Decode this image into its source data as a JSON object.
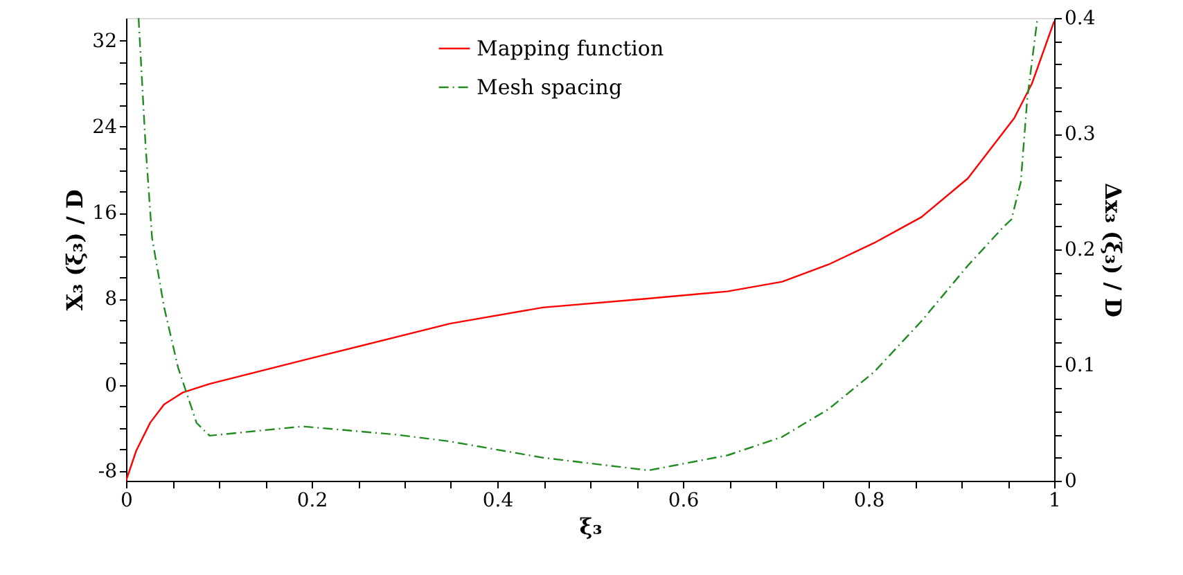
{
  "chart_data": {
    "type": "line",
    "xlabel": "ξ₃",
    "ylabel": "X₃ (ξ₃) / D",
    "y2label": "Δx₃ (ξ₃) / D",
    "xlim": [
      0,
      1
    ],
    "ylim": [
      -8.9,
      34.1
    ],
    "y2lim": [
      0,
      0.4
    ],
    "xticks": [
      0,
      {
        "value": 0.05,
        "label": null
      },
      {
        "value": 0.1,
        "label": null
      },
      {
        "value": 0.15,
        "label": null
      },
      0.2,
      {
        "value": 0.25,
        "label": null
      },
      {
        "value": 0.3,
        "label": null
      },
      {
        "value": 0.35,
        "label": null
      },
      0.4,
      {
        "value": 0.45,
        "label": null
      },
      {
        "value": 0.5,
        "label": null
      },
      {
        "value": 0.55,
        "label": null
      },
      0.6,
      {
        "value": 0.65,
        "label": null
      },
      {
        "value": 0.7,
        "label": null
      },
      {
        "value": 0.75,
        "label": null
      },
      0.8,
      {
        "value": 0.85,
        "label": null
      },
      {
        "value": 0.9,
        "label": null
      },
      {
        "value": 0.95,
        "label": null
      },
      1
    ],
    "yticks": [
      -8,
      {
        "value": -6,
        "label": null
      },
      {
        "value": -4,
        "label": null
      },
      {
        "value": -2,
        "label": null
      },
      0,
      {
        "value": 2,
        "label": null
      },
      {
        "value": 4,
        "label": null
      },
      {
        "value": 6,
        "label": null
      },
      8,
      {
        "value": 10,
        "label": null
      },
      {
        "value": 12,
        "label": null
      },
      {
        "value": 14,
        "label": null
      },
      16,
      {
        "value": 18,
        "label": null
      },
      {
        "value": 20,
        "label": null
      },
      {
        "value": 22,
        "label": null
      },
      24,
      {
        "value": 26,
        "label": null
      },
      {
        "value": 28,
        "label": null
      },
      {
        "value": 30,
        "label": null
      },
      32
    ],
    "y2ticks": [
      0,
      {
        "value": 0.02,
        "label": null
      },
      {
        "value": 0.04,
        "label": null
      },
      {
        "value": 0.06,
        "label": null
      },
      {
        "value": 0.08,
        "label": null
      },
      0.1,
      {
        "value": 0.12,
        "label": null
      },
      {
        "value": 0.14,
        "label": null
      },
      {
        "value": 0.16,
        "label": null
      },
      {
        "value": 0.18,
        "label": null
      },
      0.2,
      {
        "value": 0.22,
        "label": null
      },
      {
        "value": 0.24,
        "label": null
      },
      {
        "value": 0.26,
        "label": null
      },
      {
        "value": 0.28,
        "label": null
      },
      0.3,
      {
        "value": 0.32,
        "label": null
      },
      {
        "value": 0.34,
        "label": null
      },
      {
        "value": 0.36,
        "label": null
      },
      {
        "value": 0.38,
        "label": null
      },
      0.4
    ],
    "grid": false,
    "legend": "top",
    "marker": "none",
    "series": [
      {
        "name": "Mapping function",
        "color": "#ff0000",
        "line_style": "solid",
        "x": [
          0,
          0.011,
          0.026,
          0.041,
          0.061,
          0.09,
          0.2,
          0.349,
          0.449,
          0.558,
          0.648,
          0.707,
          0.757,
          0.806,
          0.857,
          0.907,
          0.957,
          0.976,
          1
        ],
        "values": [
          -8.9,
          -6.1,
          -3.5,
          -1.8,
          -0.7,
          0.1,
          2.5,
          5.7,
          7.2,
          8.0,
          8.7,
          9.6,
          11.2,
          13.2,
          15.6,
          19.2,
          24.8,
          28.0,
          33.8
        ]
      },
      {
        "name": "Mesh spacing",
        "color": "#228b22",
        "line_style": "dashdot",
        "axis": "y2",
        "x": [
          0.0135,
          0.021,
          0.028,
          0.041,
          0.056,
          0.076,
          0.09,
          0.19,
          0.29,
          0.349,
          0.449,
          0.563,
          0.648,
          0.707,
          0.757,
          0.806,
          0.857,
          0.907,
          0.946,
          0.954,
          0.964,
          0.971,
          0.982
        ],
        "values": [
          0.4,
          0.29,
          0.21,
          0.15,
          0.098,
          0.05,
          0.039,
          0.047,
          0.04,
          0.034,
          0.02,
          0.009,
          0.022,
          0.038,
          0.062,
          0.094,
          0.138,
          0.186,
          0.22,
          0.226,
          0.258,
          0.33,
          0.4
        ]
      }
    ]
  }
}
